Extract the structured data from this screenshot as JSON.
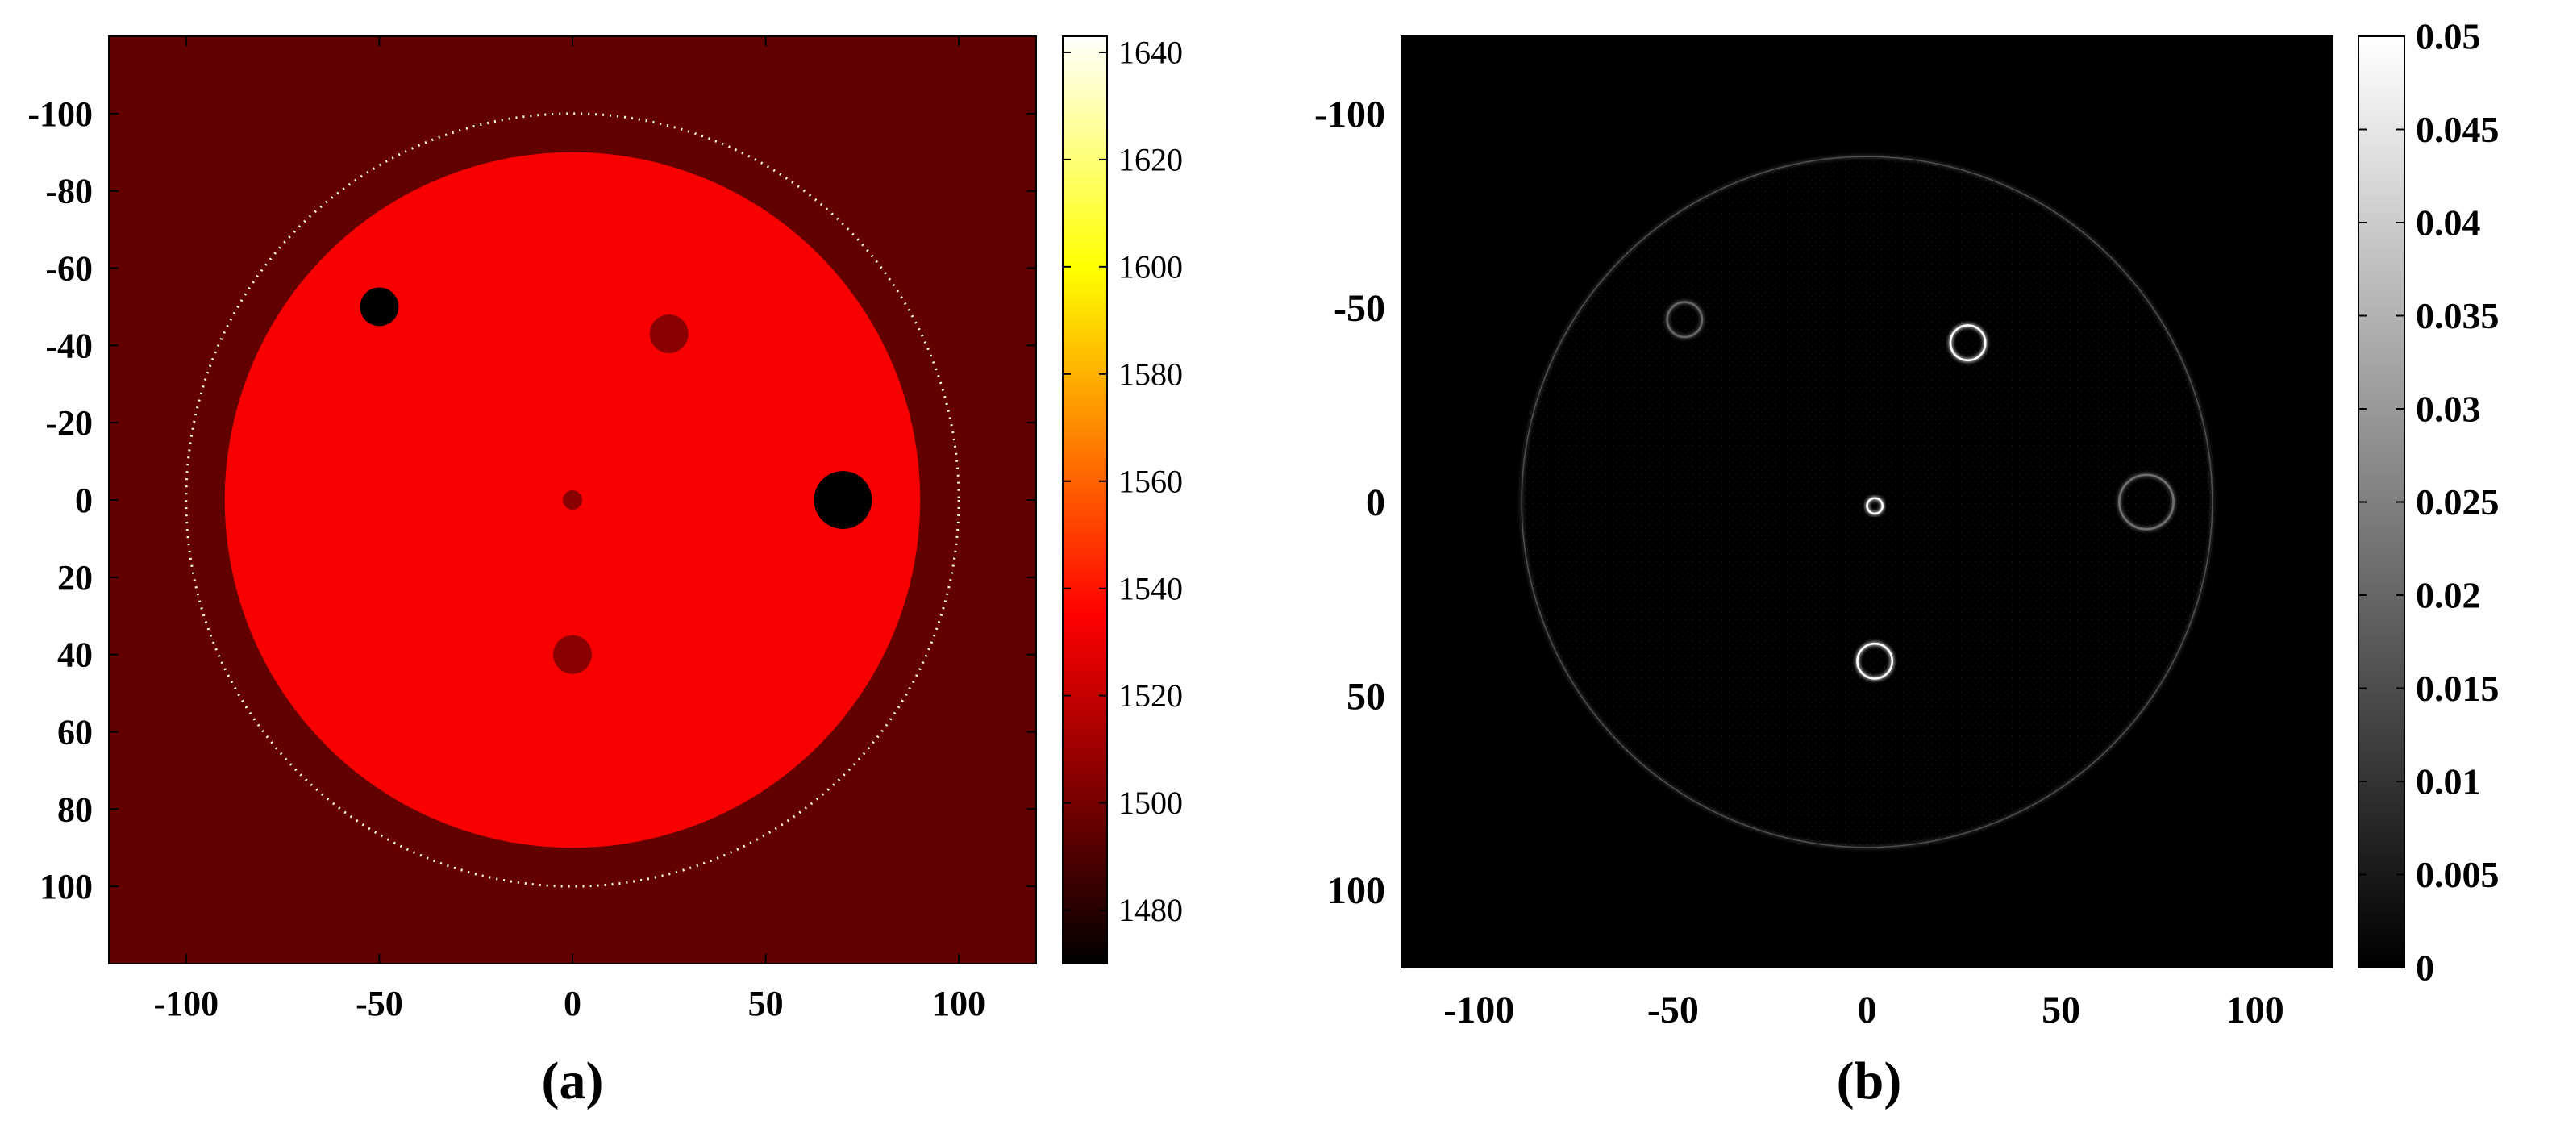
{
  "chart_data": [
    {
      "type": "heatmap",
      "panel_label": "(a)",
      "colormap": "hot",
      "xlim": [
        -120,
        120
      ],
      "ylim": [
        -120,
        120
      ],
      "y_axis_direction": "down",
      "x_ticks": [
        "-100",
        "-50",
        "0",
        "50",
        "100"
      ],
      "x_tick_values": [
        -100,
        -50,
        0,
        50,
        100
      ],
      "y_ticks": [
        "-100",
        "-80",
        "-60",
        "-40",
        "-20",
        "0",
        "20",
        "40",
        "60",
        "80",
        "100"
      ],
      "y_tick_values": [
        -100,
        -80,
        -60,
        -40,
        -20,
        0,
        20,
        40,
        60,
        80,
        100
      ],
      "colorbar": {
        "range": [
          1470,
          1643
        ],
        "ticks": [
          "1480",
          "1500",
          "1520",
          "1540",
          "1560",
          "1580",
          "1600",
          "1620",
          "1640"
        ],
        "tick_values": [
          1480,
          1500,
          1520,
          1540,
          1560,
          1580,
          1600,
          1620,
          1640
        ]
      },
      "background_value": 1495,
      "ring": {
        "cx": 0,
        "cy": 0,
        "r": 100,
        "value": 1640,
        "style": "dotted"
      },
      "regions": [
        {
          "shape": "disk",
          "cx": 0,
          "cy": 0,
          "r": 90,
          "value": 1533
        },
        {
          "shape": "disk",
          "cx": -50,
          "cy": -50,
          "r": 5,
          "value": 1470
        },
        {
          "shape": "disk",
          "cx": 25,
          "cy": -43,
          "r": 5,
          "value": 1505
        },
        {
          "shape": "disk",
          "cx": 70,
          "cy": 0,
          "r": 7.5,
          "value": 1470
        },
        {
          "shape": "disk",
          "cx": 0,
          "cy": 0,
          "r": 2.5,
          "value": 1505
        },
        {
          "shape": "disk",
          "cx": 0,
          "cy": 40,
          "r": 5,
          "value": 1505
        }
      ]
    },
    {
      "type": "heatmap",
      "panel_label": "(b)",
      "colormap": "gray",
      "xlim": [
        -120,
        120
      ],
      "ylim": [
        -120,
        120
      ],
      "y_axis_direction": "down",
      "x_ticks": [
        "-100",
        "-50",
        "0",
        "50",
        "100"
      ],
      "x_tick_values": [
        -100,
        -50,
        0,
        50,
        100
      ],
      "y_ticks": [
        "-100",
        "-50",
        "0",
        "50",
        "100"
      ],
      "y_tick_values": [
        -100,
        -50,
        0,
        50,
        100
      ],
      "colorbar": {
        "range": [
          0,
          0.05
        ],
        "ticks": [
          "0",
          "0.005",
          "0.01",
          "0.015",
          "0.02",
          "0.025",
          "0.03",
          "0.035",
          "0.04",
          "0.045",
          "0.05"
        ],
        "tick_values": [
          0,
          0.005,
          0.01,
          0.015,
          0.02,
          0.025,
          0.03,
          0.035,
          0.04,
          0.045,
          0.05
        ]
      },
      "background_value": 0,
      "edge_rings": [
        {
          "cx": 0,
          "cy": 0,
          "r": 89,
          "value": 0.022
        },
        {
          "cx": -47,
          "cy": -47,
          "r": 4.5,
          "value": 0.02
        },
        {
          "cx": 26,
          "cy": -41,
          "r": 4.5,
          "value": 0.05
        },
        {
          "cx": 72,
          "cy": 0,
          "r": 7,
          "value": 0.022
        },
        {
          "cx": 2,
          "cy": 1,
          "r": 2,
          "value": 0.05
        },
        {
          "cx": 2,
          "cy": 41,
          "r": 4.5,
          "value": 0.05
        }
      ]
    }
  ]
}
